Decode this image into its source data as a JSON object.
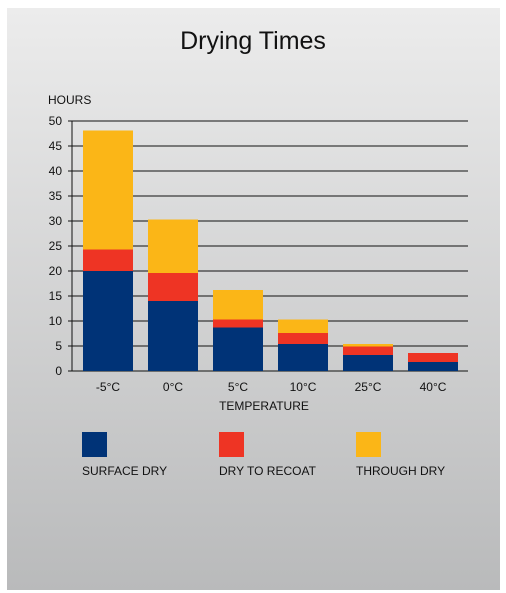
{
  "chart_data": {
    "type": "bar",
    "stacked": true,
    "title": "Drying Times",
    "ylabel": "HOURS",
    "xlabel": "TEMPERATURE",
    "categories": [
      "-5°C",
      "0°C",
      "5°C",
      "10°C",
      "25°C",
      "40°C"
    ],
    "ylim": [
      0,
      50
    ],
    "yticks": [
      0,
      5,
      10,
      15,
      20,
      25,
      30,
      35,
      40,
      45,
      50
    ],
    "grid": true,
    "legend_position": "bottom",
    "series": [
      {
        "name": "SURFACE DRY",
        "color": "#003377",
        "values": [
          20,
          14,
          8.7,
          5.4,
          3.2,
          1.8
        ]
      },
      {
        "name": "DRY TO RECOAT",
        "color": "#ee3424",
        "values": [
          4.3,
          5.6,
          1.6,
          2.2,
          1.7,
          1.8
        ]
      },
      {
        "name": "THROUGH DRY",
        "color": "#fbb617",
        "values": [
          23.8,
          10.7,
          5.9,
          2.7,
          0.5,
          0
        ]
      }
    ]
  }
}
